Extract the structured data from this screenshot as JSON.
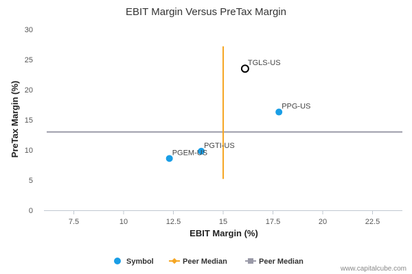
{
  "chart_data": {
    "type": "scatter",
    "title": "EBIT Margin Versus PreTax Margin",
    "xlabel": "EBIT Margin (%)",
    "ylabel": "PreTax Margin (%)",
    "xlim": [
      6,
      24
    ],
    "ylim": [
      0,
      30
    ],
    "x_ticks": [
      7.5,
      10,
      12.5,
      15,
      17.5,
      20,
      22.5
    ],
    "x_tick_labels": [
      "7.5",
      "10",
      "12.5",
      "15",
      "17.5",
      "20",
      "22.5"
    ],
    "y_ticks": [
      0,
      5,
      10,
      15,
      20,
      25,
      30
    ],
    "y_tick_labels": [
      "0",
      "5",
      "10",
      "15",
      "20",
      "25",
      "30"
    ],
    "grid": false,
    "points": [
      {
        "label": "TGLS-US",
        "x": 16.1,
        "y": 23.5,
        "style": "highlight"
      },
      {
        "label": "PPG-US",
        "x": 17.8,
        "y": 16.3,
        "style": "symbol"
      },
      {
        "label": "PGTI-US",
        "x": 13.9,
        "y": 9.8,
        "style": "symbol"
      },
      {
        "label": "PGEM-US",
        "x": 12.3,
        "y": 8.6,
        "style": "symbol"
      }
    ],
    "peer_median_x": {
      "value": 15.0,
      "y_range": [
        5.2,
        27.2
      ]
    },
    "peer_median_y": {
      "value": 13.0
    },
    "legend": {
      "placement": "bottom",
      "entries": [
        {
          "label": "Symbol",
          "color": "#1a9ee6",
          "marker": "circle"
        },
        {
          "label": "Peer Median",
          "color": "#f5a623",
          "marker": "line-diamond"
        },
        {
          "label": "Peer Median",
          "color": "#9a9aa8",
          "marker": "line-square"
        }
      ]
    },
    "colors": {
      "symbol": "#1a9ee6",
      "highlight_stroke": "#000000",
      "median_x": "#f5a623",
      "median_y": "#9a9aa8"
    }
  },
  "watermark": "www.capitalcube.com"
}
